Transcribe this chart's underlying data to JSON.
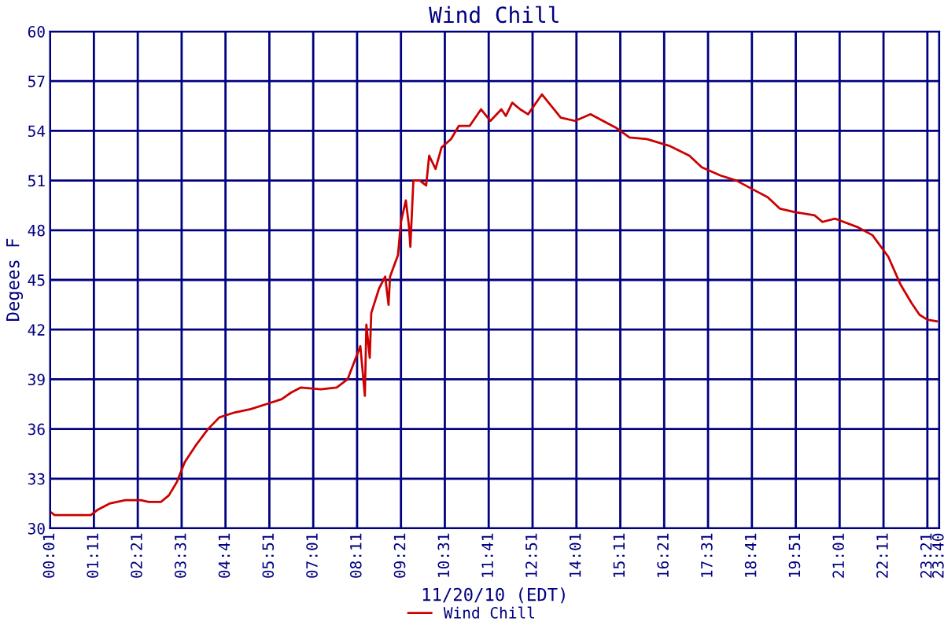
{
  "chart_data": {
    "type": "line",
    "title": "Wind Chill",
    "xlabel": "11/20/10 (EDT)",
    "ylabel": "Degees F",
    "x": [
      0.02,
      0.14,
      0.68,
      1.1,
      1.27,
      1.6,
      2.02,
      2.43,
      2.64,
      2.97,
      3.18,
      3.39,
      3.6,
      3.89,
      4.22,
      4.52,
      4.93,
      5.35,
      5.77,
      6.18,
      6.43,
      6.68,
      7.22,
      7.64,
      7.93,
      8.1,
      8.27,
      8.35,
      8.39,
      8.43,
      8.52,
      8.56,
      8.77,
      8.93,
      9.02,
      9.06,
      9.27,
      9.35,
      9.48,
      9.56,
      9.6,
      9.68,
      9.85,
      10.02,
      10.1,
      10.27,
      10.43,
      10.68,
      10.89,
      11.18,
      11.48,
      11.73,
      12.02,
      12.14,
      12.31,
      12.52,
      12.73,
      13.1,
      13.35,
      13.6,
      13.98,
      14.39,
      15.06,
      15.43,
      15.89,
      16.48,
      17.02,
      17.35,
      17.85,
      18.27,
      18.68,
      19.1,
      19.43,
      19.81,
      20.35,
      20.56,
      20.89,
      21.48,
      21.89,
      22.31,
      22.64,
      22.93,
      23.14,
      23.35,
      23.6
    ],
    "series": [
      {
        "name": "Wind Chill",
        "color": "#cc0000",
        "values": [
          31.0,
          30.8,
          30.8,
          30.8,
          31.1,
          31.5,
          31.7,
          31.7,
          31.6,
          31.6,
          32.0,
          32.8,
          34.0,
          35.0,
          36.0,
          36.7,
          37.0,
          37.2,
          37.5,
          37.8,
          38.2,
          38.5,
          38.4,
          38.5,
          39.0,
          40.0,
          41.0,
          39.0,
          38.0,
          42.3,
          40.3,
          43.0,
          44.5,
          45.2,
          43.5,
          45.2,
          46.5,
          48.5,
          49.8,
          48.3,
          47.0,
          51.0,
          51.0,
          50.7,
          52.5,
          51.7,
          53.0,
          53.5,
          54.3,
          54.3,
          55.3,
          54.6,
          55.3,
          54.9,
          55.7,
          55.3,
          55.0,
          56.2,
          55.5,
          54.8,
          54.6,
          55.0,
          54.2,
          53.6,
          53.5,
          53.1,
          52.5,
          51.8,
          51.3,
          51.0,
          50.5,
          50.0,
          49.3,
          49.1,
          48.9,
          48.5,
          48.7,
          48.2,
          47.7,
          46.4,
          44.7,
          43.6,
          42.9,
          42.6,
          42.5
        ]
      }
    ],
    "xlim": [
      0.0167,
      23.6667
    ],
    "xticks": [
      {
        "value": 0.0167,
        "label": "00:01"
      },
      {
        "value": 1.1833,
        "label": "01:11"
      },
      {
        "value": 2.35,
        "label": "02:21"
      },
      {
        "value": 3.5167,
        "label": "03:31"
      },
      {
        "value": 4.6833,
        "label": "04:41"
      },
      {
        "value": 5.85,
        "label": "05:51"
      },
      {
        "value": 7.0167,
        "label": "07:01"
      },
      {
        "value": 8.1833,
        "label": "08:11"
      },
      {
        "value": 9.35,
        "label": "09:21"
      },
      {
        "value": 10.5167,
        "label": "10:31"
      },
      {
        "value": 11.6833,
        "label": "11:41"
      },
      {
        "value": 12.85,
        "label": "12:51"
      },
      {
        "value": 14.0167,
        "label": "14:01"
      },
      {
        "value": 15.1833,
        "label": "15:11"
      },
      {
        "value": 16.35,
        "label": "16:21"
      },
      {
        "value": 17.5167,
        "label": "17:31"
      },
      {
        "value": 18.6833,
        "label": "18:41"
      },
      {
        "value": 19.85,
        "label": "19:51"
      },
      {
        "value": 21.0167,
        "label": "21:01"
      },
      {
        "value": 22.1833,
        "label": "22:11"
      },
      {
        "value": 23.35,
        "label": "23:21"
      },
      {
        "value": 23.6667,
        "label": "23:40"
      }
    ],
    "ylim": [
      30,
      60
    ],
    "yticks": [
      30,
      33,
      36,
      39,
      42,
      45,
      48,
      51,
      54,
      57,
      60
    ],
    "grid": true,
    "legend": "bottom",
    "marker": "none",
    "line_style": "solid"
  }
}
